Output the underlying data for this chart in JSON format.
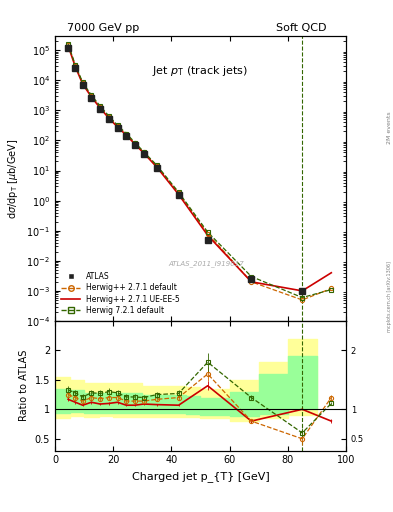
{
  "title_left": "7000 GeV pp",
  "title_right": "Soft QCD",
  "plot_title": "Jet p_{T} (track jets)",
  "xlabel": "Charged jet p_{T} [GeV]",
  "ylabel_main": "d$\\sigma$/dp$_{\\rm T}$ [$\\mu$b/GeV]",
  "ylabel_ratio": "Ratio to ATLAS",
  "watermark": "ATLAS_2011_I919017",
  "xlim": [
    0,
    100
  ],
  "ylim_main": [
    0.0001,
    300000.0
  ],
  "ylim_ratio": [
    0.3,
    2.5
  ],
  "atlas_x": [
    4.5,
    7.0,
    9.5,
    12.5,
    15.5,
    18.5,
    21.5,
    24.5,
    27.5,
    30.5,
    35.0,
    42.5,
    52.5,
    67.5,
    85.0
  ],
  "atlas_y": [
    120000.0,
    25000.0,
    7000.0,
    2500.0,
    1100.0,
    500.0,
    250.0,
    140.0,
    70.0,
    35.0,
    12.0,
    1.5,
    0.05,
    0.0025,
    0.001
  ],
  "herwig271_x": [
    4.5,
    7.0,
    9.5,
    12.5,
    15.5,
    18.5,
    21.5,
    24.5,
    27.5,
    30.5,
    35.0,
    42.5,
    52.5,
    67.5,
    85.0,
    95.0
  ],
  "herwig271_y": [
    150000.0,
    30000.0,
    8000.0,
    3000.0,
    1300.0,
    600.0,
    300.0,
    160.0,
    80.0,
    40.0,
    14.0,
    1.8,
    0.08,
    0.002,
    0.0005,
    0.0012
  ],
  "herwig271ue_x": [
    4.5,
    7.0,
    9.5,
    12.5,
    15.5,
    18.5,
    21.5,
    24.5,
    27.5,
    30.5,
    35.0,
    42.5,
    52.5,
    67.5,
    85.0,
    95.0
  ],
  "herwig271ue_y": [
    140000.0,
    28000.0,
    7500.0,
    2800.0,
    1200.0,
    550.0,
    280.0,
    150.0,
    75.0,
    38.0,
    13.0,
    1.6,
    0.07,
    0.002,
    0.001,
    0.004
  ],
  "herwig721_x": [
    4.5,
    7.0,
    9.5,
    12.5,
    15.5,
    18.5,
    21.5,
    24.5,
    27.5,
    30.5,
    35.0,
    42.5,
    52.5,
    67.5,
    85.0,
    95.0
  ],
  "herwig721_y": [
    160000.0,
    32000.0,
    8500.0,
    3200.0,
    1400.0,
    650.0,
    320.0,
    170.0,
    85.0,
    42.0,
    15.0,
    1.9,
    0.09,
    0.003,
    0.0006,
    0.0011
  ],
  "ratio_herwig271_y": [
    1.25,
    1.2,
    1.14,
    1.2,
    1.18,
    1.2,
    1.2,
    1.14,
    1.14,
    1.14,
    1.17,
    1.2,
    1.6,
    0.8,
    0.5,
    1.2
  ],
  "ratio_herwig271ue_y": [
    1.17,
    1.12,
    1.07,
    1.12,
    1.09,
    1.1,
    1.12,
    1.07,
    1.07,
    1.09,
    1.08,
    1.07,
    1.4,
    0.8,
    1.0,
    0.8
  ],
  "ratio_herwig721_y": [
    1.33,
    1.28,
    1.21,
    1.28,
    1.27,
    1.3,
    1.28,
    1.21,
    1.21,
    1.2,
    1.25,
    1.27,
    1.8,
    1.2,
    0.6,
    1.1
  ],
  "band_x": [
    0,
    5,
    10,
    15,
    20,
    25,
    30,
    35,
    40,
    45,
    50,
    55,
    60,
    70,
    80,
    90
  ],
  "band_yellow_lo": [
    0.85,
    0.88,
    0.87,
    0.88,
    0.87,
    0.87,
    0.87,
    0.87,
    0.87,
    0.87,
    0.85,
    0.85,
    0.8,
    0.85,
    0.9,
    1.1
  ],
  "band_yellow_hi": [
    1.55,
    1.5,
    1.45,
    1.45,
    1.45,
    1.45,
    1.4,
    1.4,
    1.4,
    1.38,
    1.35,
    1.35,
    1.5,
    1.8,
    2.2,
    2.2
  ],
  "band_green_lo": [
    0.93,
    0.95,
    0.93,
    0.93,
    0.93,
    0.93,
    0.93,
    0.93,
    0.93,
    0.92,
    0.9,
    0.9,
    0.88,
    0.92,
    1.0,
    1.15
  ],
  "band_green_hi": [
    1.35,
    1.32,
    1.28,
    1.28,
    1.28,
    1.28,
    1.25,
    1.25,
    1.25,
    1.23,
    1.2,
    1.2,
    1.3,
    1.6,
    1.9,
    1.9
  ],
  "color_atlas": "#222222",
  "color_herwig271": "#cc6600",
  "color_herwig271ue": "#cc0000",
  "color_herwig721": "#336600",
  "color_yellow": "#ffff99",
  "color_green": "#99ff99",
  "vline_x": 85.0,
  "dpi": 100
}
